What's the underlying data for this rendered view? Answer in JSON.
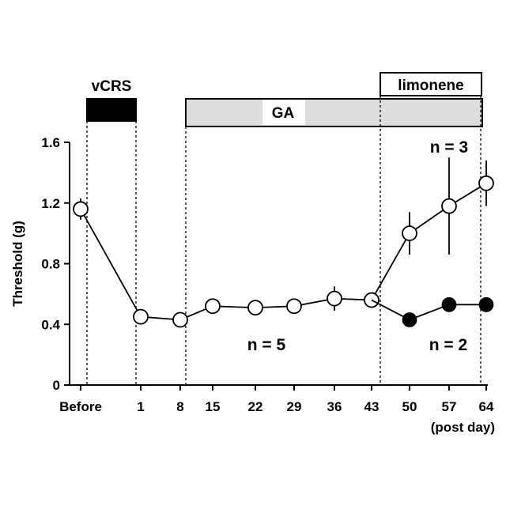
{
  "chart_data": {
    "type": "line",
    "xlabel": "(post day)",
    "ylabel": "Threshold (g)",
    "ylim": [
      0,
      1.6
    ],
    "yticks": [
      "0",
      "0.4",
      "0.8",
      "1.2",
      "1.6"
    ],
    "categories": [
      "Before",
      "1",
      "8",
      "15",
      "22",
      "29",
      "36",
      "43",
      "50",
      "57",
      "64"
    ],
    "series": [
      {
        "marker": "open-circle",
        "color": "#000000",
        "points": [
          {
            "x": "Before",
            "y": 1.16,
            "err": 0.07
          },
          {
            "x": "1",
            "y": 0.45,
            "err": 0
          },
          {
            "x": "8",
            "y": 0.43,
            "err": 0
          },
          {
            "x": "15",
            "y": 0.52,
            "err": 0
          },
          {
            "x": "22",
            "y": 0.51,
            "err": 0
          },
          {
            "x": "29",
            "y": 0.52,
            "err": 0
          },
          {
            "x": "36",
            "y": 0.57,
            "err": 0.08
          },
          {
            "x": "43",
            "y": 0.56,
            "err": 0.03
          },
          {
            "x": "50",
            "y": 1.0,
            "err": 0.14
          },
          {
            "x": "57",
            "y": 1.18,
            "err": 0.32
          },
          {
            "x": "64",
            "y": 1.33,
            "err": 0.15
          }
        ]
      },
      {
        "marker": "filled-circle",
        "color": "#000000",
        "points": [
          {
            "x": "43",
            "y": 0.56,
            "err": 0
          },
          {
            "x": "50",
            "y": 0.43,
            "err": 0
          },
          {
            "x": "57",
            "y": 0.53,
            "err": 0
          },
          {
            "x": "64",
            "y": 0.53,
            "err": 0
          }
        ]
      }
    ],
    "treatments": [
      {
        "label": "vCRS",
        "from": "Before",
        "to": "1",
        "fill": "#000000"
      },
      {
        "label": "GA",
        "from": "8",
        "to": "64",
        "fill": "#dddddd"
      },
      {
        "label": "limonene",
        "from": "43",
        "to": "64",
        "fill": "#ffffff"
      }
    ],
    "annotations": [
      "n = 3",
      "n = 5",
      "n = 2"
    ],
    "grid": false
  }
}
